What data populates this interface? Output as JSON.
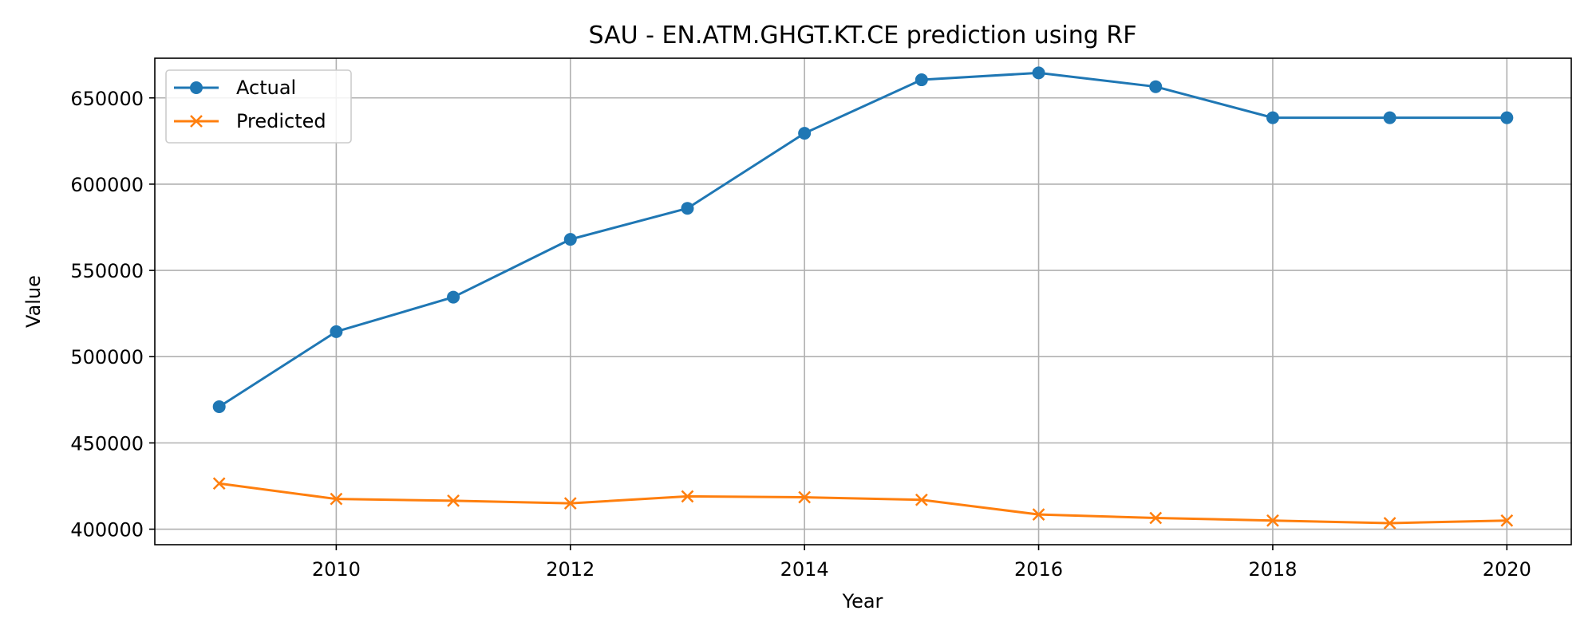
{
  "chart_data": {
    "type": "line",
    "title": "SAU - EN.ATM.GHGT.KT.CE prediction using RF",
    "xlabel": "Year",
    "ylabel": "Value",
    "x": [
      2009,
      2010,
      2011,
      2012,
      2013,
      2014,
      2015,
      2016,
      2017,
      2018,
      2019,
      2020
    ],
    "xlim": [
      2008.45,
      2020.55
    ],
    "ylim": [
      391000,
      673000
    ],
    "xticks": [
      2010,
      2012,
      2014,
      2016,
      2018,
      2020
    ],
    "yticks": [
      400000,
      450000,
      500000,
      550000,
      600000,
      650000
    ],
    "grid": true,
    "legend_position": "top-left",
    "series": [
      {
        "name": "Actual",
        "color": "#1f77b4",
        "marker": "circle",
        "values": [
          471000,
          514500,
          534500,
          568000,
          586000,
          629500,
          660500,
          664500,
          656500,
          638500,
          638500,
          638500
        ]
      },
      {
        "name": "Predicted",
        "color": "#ff7f0e",
        "marker": "x",
        "values": [
          426500,
          417500,
          416500,
          415000,
          419000,
          418500,
          417000,
          408500,
          406500,
          405000,
          403500,
          405000
        ]
      }
    ]
  }
}
